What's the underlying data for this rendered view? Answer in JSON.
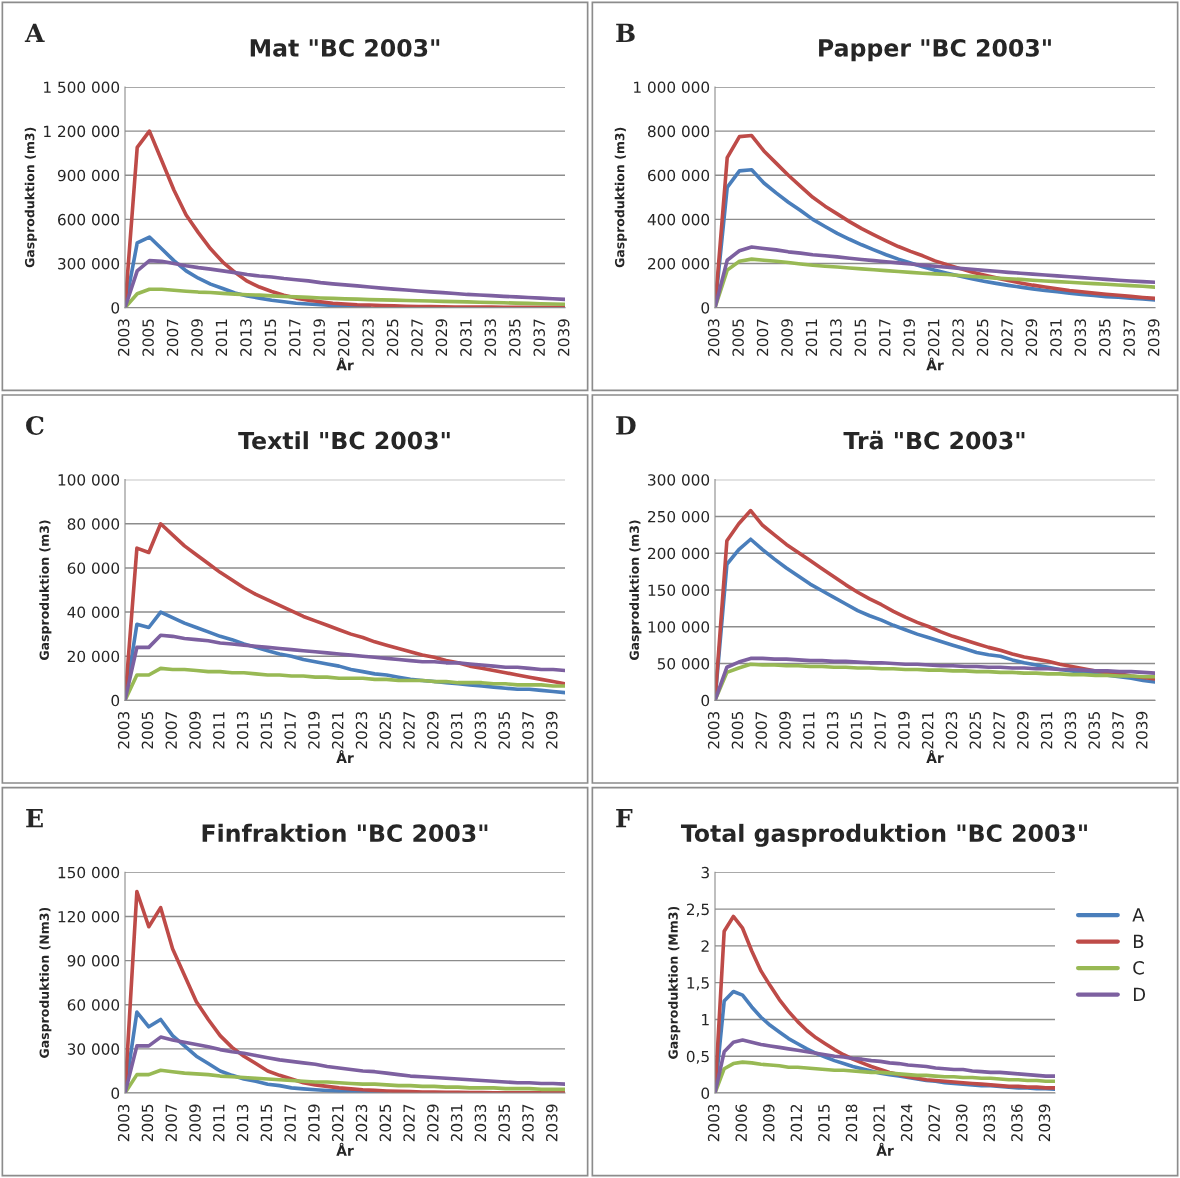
{
  "chart_data": [
    {
      "type": "line",
      "title": "Mat \"BC 2003\"",
      "xlabel": "År",
      "ylabel": "Gasproduktion (m3)",
      "annotations": [
        "A"
      ],
      "grid": "y",
      "categories": [
        "2003",
        null,
        "2005",
        null,
        "2007",
        null,
        "2009",
        null,
        "2011",
        null,
        "2013",
        null,
        "2015",
        null,
        "2017",
        null,
        "2019",
        null,
        "2021",
        null,
        "2023",
        null,
        "2025",
        null,
        "2027",
        null,
        "2029",
        null,
        "2031",
        null,
        "2033",
        null,
        "2035",
        null,
        "2037",
        null,
        "2039"
      ],
      "ylim": [
        0,
        1500000
      ],
      "yticks": [
        0,
        {
          "value": 300000,
          "label": "300 000"
        },
        {
          "value": 600000,
          "label": "600 000"
        },
        {
          "value": 900000,
          "label": "900 000"
        },
        {
          "value": 1200000,
          "label": "1 200 000"
        },
        {
          "value": 1500000,
          "label": "1 500 000"
        }
      ],
      "series": [
        {
          "color": "#4a7ebb",
          "values": [
            0,
            440000,
            480000,
            400000,
            320000,
            250000,
            200000,
            160000,
            130000,
            100000,
            80000,
            65000,
            50000,
            40000,
            30000,
            25000,
            20000,
            15000,
            12000,
            10000,
            8000,
            null,
            null,
            null,
            null,
            null,
            null,
            null,
            null,
            null,
            null,
            null,
            null,
            null,
            null,
            null,
            null
          ]
        },
        {
          "color": "#be4b48",
          "values": [
            0,
            1090000,
            1200000,
            1000000,
            800000,
            630000,
            510000,
            400000,
            310000,
            240000,
            180000,
            140000,
            110000,
            85000,
            65000,
            50000,
            40000,
            30000,
            25000,
            20000,
            18000,
            15000,
            12000,
            10000,
            8000,
            7000,
            6000,
            5000,
            5000,
            4000,
            4000,
            3000,
            3000,
            3000,
            2000,
            2000,
            2000
          ]
        },
        {
          "color": "#98b954",
          "values": [
            0,
            95000,
            125000,
            125000,
            118000,
            112000,
            106000,
            103000,
            97000,
            92000,
            88000,
            85000,
            80000,
            76000,
            73000,
            70000,
            66000,
            63000,
            60000,
            58000,
            55000,
            53000,
            51000,
            49000,
            47000,
            45000,
            43000,
            41000,
            39000,
            37000,
            35000,
            33000,
            31000,
            29000,
            27000,
            25000,
            23000
          ]
        },
        {
          "color": "#7d60a0",
          "values": [
            0,
            250000,
            320000,
            315000,
            300000,
            285000,
            272000,
            262000,
            250000,
            238000,
            225000,
            215000,
            208000,
            198000,
            190000,
            182000,
            170000,
            162000,
            155000,
            148000,
            140000,
            133000,
            126000,
            120000,
            113000,
            107000,
            102000,
            96000,
            90000,
            86000,
            82000,
            77000,
            73000,
            69000,
            65000,
            61000,
            56000
          ]
        }
      ]
    },
    {
      "type": "line",
      "title": "Papper \"BC 2003\"",
      "xlabel": "År",
      "ylabel": "Gasproduktion (m3)",
      "annotations": [
        "B"
      ],
      "grid": "y",
      "categories": [
        "2003",
        null,
        "2005",
        null,
        "2007",
        null,
        "2009",
        null,
        "2011",
        null,
        "2013",
        null,
        "2015",
        null,
        "2017",
        null,
        "2019",
        null,
        "2021",
        null,
        "2023",
        null,
        "2025",
        null,
        "2027",
        null,
        "2029",
        null,
        "2031",
        null,
        "2033",
        null,
        "2035",
        null,
        "2037",
        null,
        "2039"
      ],
      "ylim": [
        0,
        1000000
      ],
      "yticks": [
        0,
        {
          "value": 200000,
          "label": "200 000"
        },
        {
          "value": 400000,
          "label": "400 000"
        },
        {
          "value": 600000,
          "label": "600 000"
        },
        {
          "value": 800000,
          "label": "800 000"
        },
        {
          "value": 1000000,
          "label": "1 000 000"
        }
      ],
      "series": [
        {
          "color": "#4a7ebb",
          "values": [
            0,
            545000,
            620000,
            625000,
            565000,
            520000,
            478000,
            440000,
            400000,
            368000,
            337000,
            310000,
            285000,
            262000,
            240000,
            220000,
            202000,
            185000,
            170000,
            156000,
            143000,
            131000,
            120000,
            110000,
            101000,
            93000,
            85000,
            78000,
            72000,
            66000,
            60000,
            55000,
            50000,
            47000,
            43000,
            39000,
            35000
          ]
        },
        {
          "color": "#be4b48",
          "values": [
            0,
            680000,
            775000,
            780000,
            710000,
            655000,
            600000,
            550000,
            500000,
            460000,
            425000,
            390000,
            358000,
            330000,
            303000,
            277000,
            255000,
            235000,
            212000,
            195000,
            178000,
            162000,
            148000,
            135000,
            123000,
            112000,
            102000,
            94000,
            86000,
            78000,
            72000,
            66000,
            61000,
            56000,
            51000,
            46000,
            42000
          ]
        },
        {
          "color": "#98b954",
          "values": [
            0,
            170000,
            210000,
            220000,
            215000,
            210000,
            205000,
            198000,
            192000,
            188000,
            184000,
            180000,
            176000,
            172000,
            168000,
            164000,
            160000,
            156000,
            153000,
            150000,
            146000,
            142000,
            138000,
            134000,
            131000,
            128000,
            124000,
            121000,
            118000,
            115000,
            112000,
            109000,
            106000,
            103000,
            100000,
            97000,
            93000
          ]
        },
        {
          "color": "#7d60a0",
          "values": [
            0,
            215000,
            258000,
            275000,
            268000,
            262000,
            253000,
            247000,
            240000,
            235000,
            230000,
            224000,
            218000,
            213000,
            208000,
            203000,
            198000,
            193000,
            188000,
            183000,
            178000,
            174000,
            169000,
            165000,
            160000,
            156000,
            152000,
            148000,
            144000,
            140000,
            136000,
            132000,
            128000,
            124000,
            121000,
            118000,
            115000
          ]
        }
      ]
    },
    {
      "type": "line",
      "title": "Textil \"BC 2003\"",
      "xlabel": "År",
      "ylabel": "Gasproduktion (m3)",
      "annotations": [
        "C"
      ],
      "grid": "y",
      "categories": [
        "2003",
        null,
        "2005",
        null,
        "2007",
        null,
        "2009",
        null,
        "2011",
        null,
        "2013",
        null,
        "2015",
        null,
        "2017",
        null,
        "2019",
        null,
        "2021",
        null,
        "2023",
        null,
        "2025",
        null,
        "2027",
        null,
        "2029",
        null,
        "2031",
        null,
        "2033",
        null,
        "2035",
        null,
        "2037",
        null,
        "2039",
        null
      ],
      "ylim": [
        0,
        100000
      ],
      "yticks": [
        0,
        {
          "value": 20000,
          "label": "20 000"
        },
        {
          "value": 40000,
          "label": "40 000"
        },
        {
          "value": 60000,
          "label": "60 000"
        },
        {
          "value": 80000,
          "label": "80 000"
        },
        {
          "value": 100000,
          "label": "100 000"
        }
      ],
      "series": [
        {
          "color": "#4a7ebb",
          "values": [
            0,
            34500,
            33000,
            40000,
            37500,
            35000,
            33000,
            31000,
            29000,
            27500,
            25500,
            24000,
            22500,
            21000,
            20000,
            18500,
            17500,
            16500,
            15500,
            14000,
            13000,
            12000,
            11500,
            10500,
            9500,
            9000,
            8500,
            8000,
            7500,
            7000,
            6500,
            6000,
            5500,
            5000,
            5000,
            4500,
            4000,
            3500
          ]
        },
        {
          "color": "#be4b48",
          "values": [
            0,
            69000,
            67000,
            80000,
            75000,
            70000,
            66000,
            62000,
            58000,
            54500,
            51000,
            48000,
            45500,
            43000,
            40500,
            38000,
            36000,
            34000,
            32000,
            30000,
            28500,
            26500,
            25000,
            23500,
            22000,
            20500,
            19500,
            18000,
            17000,
            15500,
            14500,
            13500,
            12500,
            11500,
            10500,
            9500,
            8500,
            7500
          ]
        },
        {
          "color": "#98b954",
          "values": [
            0,
            11500,
            11500,
            14500,
            14000,
            14000,
            13500,
            13000,
            13000,
            12500,
            12500,
            12000,
            11500,
            11500,
            11000,
            11000,
            10500,
            10500,
            10000,
            10000,
            10000,
            9500,
            9500,
            9000,
            9000,
            9000,
            8500,
            8500,
            8000,
            8000,
            8000,
            7500,
            7500,
            7000,
            7000,
            7000,
            6500,
            6500
          ]
        },
        {
          "color": "#7d60a0",
          "values": [
            0,
            24000,
            24000,
            29500,
            29000,
            28000,
            27500,
            27000,
            26000,
            25500,
            25000,
            24500,
            24000,
            23500,
            23000,
            22500,
            22000,
            21500,
            21000,
            20500,
            20000,
            19500,
            19000,
            18500,
            18000,
            17500,
            17500,
            17000,
            17000,
            16500,
            16000,
            15500,
            15000,
            15000,
            14500,
            14000,
            14000,
            13500
          ]
        }
      ]
    },
    {
      "type": "line",
      "title": "Trä \"BC 2003\"",
      "xlabel": "År",
      "ylabel": "Gasproduktion (m3)",
      "annotations": [
        "D"
      ],
      "grid": "y",
      "categories": [
        "2003",
        null,
        "2005",
        null,
        "2007",
        null,
        "2009",
        null,
        "2011",
        null,
        "2013",
        null,
        "2015",
        null,
        "2017",
        null,
        "2019",
        null,
        "2021",
        null,
        "2023",
        null,
        "2025",
        null,
        "2027",
        null,
        "2029",
        null,
        "2031",
        null,
        "2033",
        null,
        "2035",
        null,
        "2037",
        null,
        "2039",
        null
      ],
      "ylim": [
        0,
        300000
      ],
      "yticks": [
        0,
        {
          "value": 50000,
          "label": "50 000"
        },
        {
          "value": 100000,
          "label": "100 000"
        },
        {
          "value": 150000,
          "label": "150 000"
        },
        {
          "value": 200000,
          "label": "200 000"
        },
        {
          "value": 250000,
          "label": "250 000"
        },
        {
          "value": 300000,
          "label": "300 000"
        }
      ],
      "series": [
        {
          "color": "#4a7ebb",
          "values": [
            0,
            185000,
            205000,
            219000,
            205000,
            192000,
            180000,
            169000,
            158000,
            149000,
            140000,
            131000,
            122000,
            115000,
            109000,
            102000,
            96000,
            90000,
            85000,
            80000,
            75000,
            70000,
            65000,
            62000,
            60000,
            55000,
            51000,
            48000,
            45000,
            42000,
            40000,
            38000,
            36000,
            34000,
            32000,
            30000,
            27000,
            25000
          ]
        },
        {
          "color": "#be4b48",
          "values": [
            0,
            217000,
            240000,
            258000,
            238000,
            225000,
            212000,
            201000,
            190000,
            179000,
            168000,
            157000,
            147000,
            138000,
            130000,
            121000,
            113000,
            106000,
            100000,
            93000,
            87000,
            82000,
            77000,
            72000,
            68000,
            63000,
            59000,
            56000,
            53000,
            49000,
            46000,
            43000,
            40000,
            38000,
            36000,
            33000,
            31000,
            29000
          ]
        },
        {
          "color": "#98b954",
          "values": [
            0,
            38000,
            44000,
            49000,
            48000,
            48000,
            47000,
            47000,
            46000,
            46000,
            45000,
            45000,
            44000,
            44000,
            43000,
            43000,
            42000,
            42000,
            41000,
            41000,
            40000,
            40000,
            39000,
            39000,
            38000,
            38000,
            37000,
            37000,
            36000,
            36000,
            35000,
            35000,
            34000,
            34000,
            33000,
            33000,
            32000,
            32000
          ]
        },
        {
          "color": "#7d60a0",
          "values": [
            0,
            45000,
            52000,
            57000,
            57000,
            56000,
            56000,
            55000,
            54000,
            54000,
            53000,
            53000,
            52000,
            51000,
            51000,
            50000,
            49000,
            49000,
            48000,
            47000,
            47000,
            46000,
            46000,
            45000,
            45000,
            44000,
            44000,
            43000,
            43000,
            42000,
            42000,
            41000,
            40000,
            40000,
            39000,
            39000,
            38000,
            37000
          ]
        }
      ]
    },
    {
      "type": "line",
      "title": "Finfraktion \"BC 2003\"",
      "xlabel": "År",
      "ylabel": "Gasproduktion (Nm3)",
      "annotations": [
        "E"
      ],
      "grid": "y",
      "categories": [
        "2003",
        null,
        "2005",
        null,
        "2007",
        null,
        "2009",
        null,
        "2011",
        null,
        "2013",
        null,
        "2015",
        null,
        "2017",
        null,
        "2019",
        null,
        "2021",
        null,
        "2023",
        null,
        "2025",
        null,
        "2027",
        null,
        "2029",
        null,
        "2031",
        null,
        "2033",
        null,
        "2035",
        null,
        "2037",
        null,
        "2039",
        null
      ],
      "ylim": [
        0,
        150000
      ],
      "yticks": [
        0,
        {
          "value": 30000,
          "label": "30 000"
        },
        {
          "value": 60000,
          "label": "60 000"
        },
        {
          "value": 90000,
          "label": "90 000"
        },
        {
          "value": 120000,
          "label": "120 000"
        },
        {
          "value": 150000,
          "label": "150 000"
        }
      ],
      "series": [
        {
          "color": "#4a7ebb",
          "values": [
            0,
            55000,
            45000,
            50000,
            39000,
            32000,
            25000,
            20000,
            15000,
            12000,
            9500,
            8000,
            6000,
            5000,
            3500,
            2800,
            2200,
            1700,
            1300,
            1000,
            800,
            600,
            500,
            null,
            null,
            null,
            null,
            null,
            null,
            null,
            null,
            null,
            null,
            null,
            null,
            null,
            null,
            null
          ]
        },
        {
          "color": "#be4b48",
          "values": [
            0,
            137000,
            113000,
            126000,
            98000,
            80000,
            62000,
            50000,
            39000,
            31000,
            25000,
            20000,
            15000,
            12000,
            9500,
            7000,
            5500,
            4500,
            3500,
            2800,
            2200,
            1800,
            1400,
            1100,
            900,
            700,
            600,
            500,
            400,
            300,
            300,
            200,
            200,
            200,
            100,
            100,
            100,
            100
          ]
        },
        {
          "color": "#98b954",
          "values": [
            0,
            12500,
            12500,
            15500,
            14500,
            13500,
            13000,
            12500,
            11500,
            11000,
            10500,
            10000,
            9500,
            9000,
            8500,
            8000,
            7500,
            7500,
            7000,
            6500,
            6000,
            6000,
            5500,
            5000,
            5000,
            4500,
            4500,
            4000,
            4000,
            3500,
            3500,
            3500,
            3000,
            3000,
            3000,
            2500,
            2500,
            2500
          ]
        },
        {
          "color": "#7d60a0",
          "values": [
            0,
            32000,
            32000,
            38000,
            36000,
            34500,
            33000,
            31500,
            29500,
            28000,
            27000,
            25500,
            24000,
            22500,
            21500,
            20500,
            19500,
            18000,
            17000,
            16000,
            15000,
            14500,
            13500,
            12500,
            11500,
            11000,
            10500,
            10000,
            9500,
            9000,
            8500,
            8000,
            7500,
            7000,
            7000,
            6500,
            6500,
            6000
          ]
        }
      ]
    },
    {
      "type": "line",
      "title": "Total gasproduktion \"BC 2003\"",
      "xlabel": "År",
      "ylabel": "Gasproduktion (Mm3)",
      "annotations": [
        "F"
      ],
      "grid": "y",
      "legend": "right",
      "categories": [
        "2003",
        null,
        null,
        "2006",
        null,
        null,
        "2009",
        null,
        null,
        "2012",
        null,
        null,
        "2015",
        null,
        null,
        "2018",
        null,
        null,
        "2021",
        null,
        null,
        "2024",
        null,
        null,
        "2027",
        null,
        null,
        "2030",
        null,
        null,
        "2033",
        null,
        null,
        "2036",
        null,
        null,
        "2039",
        null
      ],
      "ylim": [
        0,
        3
      ],
      "yticks": [
        0,
        {
          "value": 0.5,
          "label": "0,5"
        },
        1,
        {
          "value": 1.5,
          "label": "1,5"
        },
        2,
        {
          "value": 2.5,
          "label": "2,5"
        },
        3
      ],
      "series": [
        {
          "name": "A",
          "color": "#4a7ebb",
          "values": [
            0,
            1.25,
            1.38,
            1.33,
            1.17,
            1.03,
            0.92,
            0.83,
            0.74,
            0.67,
            0.6,
            0.54,
            0.49,
            0.44,
            0.4,
            0.36,
            0.33,
            0.3,
            0.27,
            0.25,
            0.23,
            0.21,
            0.19,
            0.17,
            0.16,
            0.14,
            0.13,
            0.12,
            0.11,
            0.1,
            0.1,
            0.09,
            0.08,
            0.07,
            0.07,
            0.06,
            0.06,
            0.05
          ]
        },
        {
          "name": "B",
          "color": "#be4b48",
          "values": [
            0,
            2.2,
            2.4,
            2.24,
            1.93,
            1.66,
            1.46,
            1.27,
            1.11,
            0.97,
            0.85,
            0.75,
            0.67,
            0.59,
            0.52,
            0.46,
            0.41,
            0.36,
            0.32,
            0.28,
            0.25,
            0.22,
            0.2,
            0.18,
            0.17,
            0.16,
            0.15,
            0.14,
            0.13,
            0.12,
            0.11,
            0.1,
            0.09,
            0.09,
            0.08,
            0.08,
            0.07,
            0.07
          ]
        },
        {
          "name": "C",
          "color": "#98b954",
          "values": [
            0,
            0.33,
            0.4,
            0.42,
            0.41,
            0.39,
            0.38,
            0.37,
            0.35,
            0.35,
            0.34,
            0.33,
            0.32,
            0.31,
            0.31,
            0.3,
            0.29,
            0.28,
            0.28,
            0.27,
            0.26,
            0.25,
            0.24,
            0.24,
            0.23,
            0.22,
            0.22,
            0.21,
            0.21,
            0.2,
            0.2,
            0.19,
            0.18,
            0.18,
            0.17,
            0.17,
            0.16,
            0.16
          ]
        },
        {
          "name": "D",
          "color": "#7d60a0",
          "values": [
            0,
            0.56,
            0.69,
            0.72,
            0.69,
            0.66,
            0.64,
            0.62,
            0.6,
            0.58,
            0.56,
            0.54,
            0.52,
            0.5,
            0.49,
            0.47,
            0.46,
            0.44,
            0.43,
            0.41,
            0.4,
            0.38,
            0.37,
            0.36,
            0.34,
            0.33,
            0.32,
            0.32,
            0.3,
            0.29,
            0.28,
            0.28,
            0.27,
            0.26,
            0.25,
            0.24,
            0.23,
            0.23
          ]
        }
      ]
    }
  ]
}
